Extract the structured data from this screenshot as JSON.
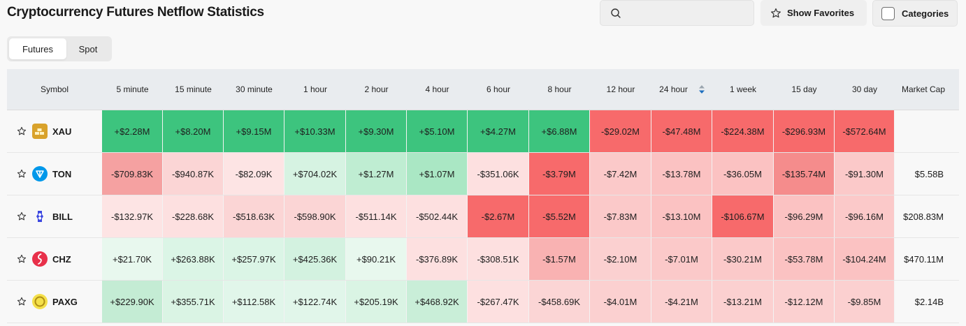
{
  "page_title": "Cryptocurrency Futures Netflow Statistics",
  "search": {
    "placeholder": "",
    "value": "",
    "icon": "search-icon"
  },
  "buttons": {
    "show_favorites": "Show Favorites",
    "categories": "Categories"
  },
  "tabs": [
    {
      "label": "Futures",
      "active": true
    },
    {
      "label": "Spot",
      "active": false
    }
  ],
  "columns": [
    "Symbol",
    "5 minute",
    "15 minute",
    "30 minute",
    "1 hour",
    "2 hour",
    "4 hour",
    "6 hour",
    "8 hour",
    "12 hour",
    "24 hour",
    "1 week",
    "15 day",
    "30 day",
    "Market Cap"
  ],
  "sorted_column": "24 hour",
  "rows": [
    {
      "symbol": "XAU",
      "values": [
        "+$2.28M",
        "+$8.20M",
        "+$9.15M",
        "+$10.33M",
        "+$9.30M",
        "+$5.10M",
        "+$4.27M",
        "+$6.88M",
        "-$29.02M",
        "-$47.48M",
        "-$224.38M",
        "-$296.93M",
        "-$572.64M"
      ],
      "market_cap": ""
    },
    {
      "symbol": "TON",
      "values": [
        "-$709.83K",
        "-$940.87K",
        "-$82.09K",
        "+$704.02K",
        "+$1.27M",
        "+$1.07M",
        "-$351.06K",
        "-$3.79M",
        "-$7.42M",
        "-$13.78M",
        "-$36.05M",
        "-$135.74M",
        "-$91.30M"
      ],
      "market_cap": "$5.58B"
    },
    {
      "symbol": "BILL",
      "values": [
        "-$132.97K",
        "-$228.68K",
        "-$518.63K",
        "-$598.90K",
        "-$511.14K",
        "-$502.44K",
        "-$2.67M",
        "-$5.52M",
        "-$7.83M",
        "-$13.10M",
        "-$106.67M",
        "-$96.29M",
        "-$96.16M"
      ],
      "market_cap": "$208.83M"
    },
    {
      "symbol": "CHZ",
      "values": [
        "+$21.70K",
        "+$263.88K",
        "+$257.97K",
        "+$425.36K",
        "+$90.21K",
        "-$376.89K",
        "-$308.51K",
        "-$1.57M",
        "-$2.10M",
        "-$7.01M",
        "-$30.21M",
        "-$53.78M",
        "-$104.24M"
      ],
      "market_cap": "$470.11M"
    },
    {
      "symbol": "PAXG",
      "values": [
        "+$229.90K",
        "+$355.71K",
        "+$112.58K",
        "+$122.74K",
        "+$205.19K",
        "+$468.92K",
        "-$267.47K",
        "-$458.69K",
        "-$4.01M",
        "-$4.21M",
        "-$13.21M",
        "-$12.12M",
        "-$9.85M"
      ],
      "market_cap": "$2.14B"
    }
  ],
  "cell_colors": [
    [
      "#3dc47e",
      "#3dc47e",
      "#3dc47e",
      "#3dc47e",
      "#3dc47e",
      "#3dc47e",
      "#3dc47e",
      "#3dc47e",
      "#f76a6b",
      "#f76a6b",
      "#f76a6b",
      "#f76a6b",
      "#f76a6b"
    ],
    [
      "#f5a1a1",
      "#fbd5d5",
      "#fde4e4",
      "#d6f3e2",
      "#bfedd2",
      "#aae7c4",
      "#fde0e0",
      "#f76a6b",
      "#fbc9c9",
      "#fbc2c2",
      "#fbc2c2",
      "#f58c8c",
      "#fbc9c9"
    ],
    [
      "#fde4e4",
      "#fde0e0",
      "#fbd5d5",
      "#fbd5d5",
      "#fde0e0",
      "#fde0e0",
      "#f76a6b",
      "#f76a6b",
      "#fbc9c9",
      "#fbc2c2",
      "#f76a6b",
      "#fbc2c2",
      "#fbc9c9"
    ],
    [
      "#e8f8ee",
      "#dbf5e6",
      "#dbf5e6",
      "#d3f2e0",
      "#e8f8ee",
      "#fde0e0",
      "#fde0e0",
      "#f9b2b2",
      "#fbd0d0",
      "#fbc9c9",
      "#fbc9c9",
      "#fbc2c2",
      "#fbc2c2"
    ],
    [
      "#c4ecd4",
      "#daf4e4",
      "#e1f6ea",
      "#e1f6ea",
      "#daf4e4",
      "#c9eed8",
      "#fde0e0",
      "#fbd5d5",
      "#fbd0d0",
      "#fbd0d0",
      "#fbd0d0",
      "#fbd0d0",
      "#fbd0d0"
    ]
  ],
  "coin_icons": [
    "gold-bar-icon",
    "ton-icon",
    "bill-icon",
    "chz-icon",
    "paxg-icon"
  ],
  "colors": {
    "positive_strong": "#3dc47e",
    "negative_strong": "#f76a6b",
    "sort_accent": "#1e6fbf"
  }
}
